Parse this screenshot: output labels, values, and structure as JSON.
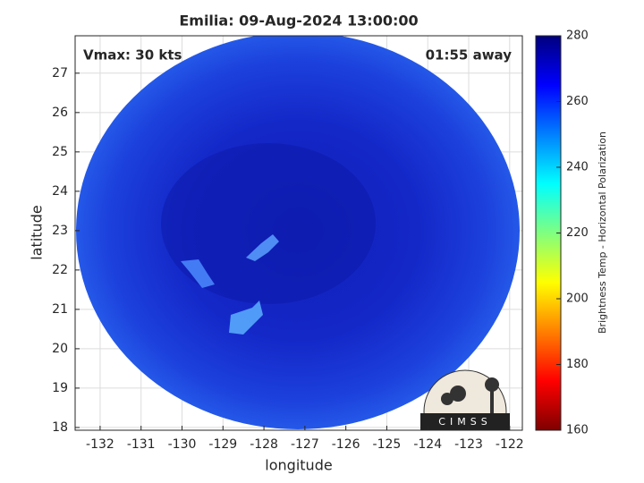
{
  "chart_data": {
    "type": "image",
    "title": "Emilia: 09-Aug-2024 13:00:00",
    "annotations": [
      "Vmax: 30 kts",
      "01:55 away"
    ],
    "xlabel": "longitude",
    "ylabel": "latitude",
    "xlim": [
      -132.61,
      -121.69
    ],
    "ylim": [
      17.93,
      27.95
    ],
    "xticks": [
      -132,
      -131,
      -130,
      -129,
      -128,
      -127,
      -126,
      -125,
      -124,
      -123,
      -122
    ],
    "yticks": [
      18,
      19,
      20,
      21,
      22,
      23,
      24,
      25,
      26,
      27
    ],
    "grid": true,
    "colorbar": {
      "label": "Brightness Temp - Horizontal Polarization",
      "lim": [
        160,
        280
      ],
      "ticks": [
        160,
        180,
        200,
        220,
        240,
        260,
        280
      ],
      "colors": [
        "#7f0000",
        "#ff0000",
        "#ff8000",
        "#ffff00",
        "#80ff80",
        "#00ffff",
        "#0080ff",
        "#0000ff",
        "#00007f"
      ]
    },
    "logo": "CIMSS"
  }
}
